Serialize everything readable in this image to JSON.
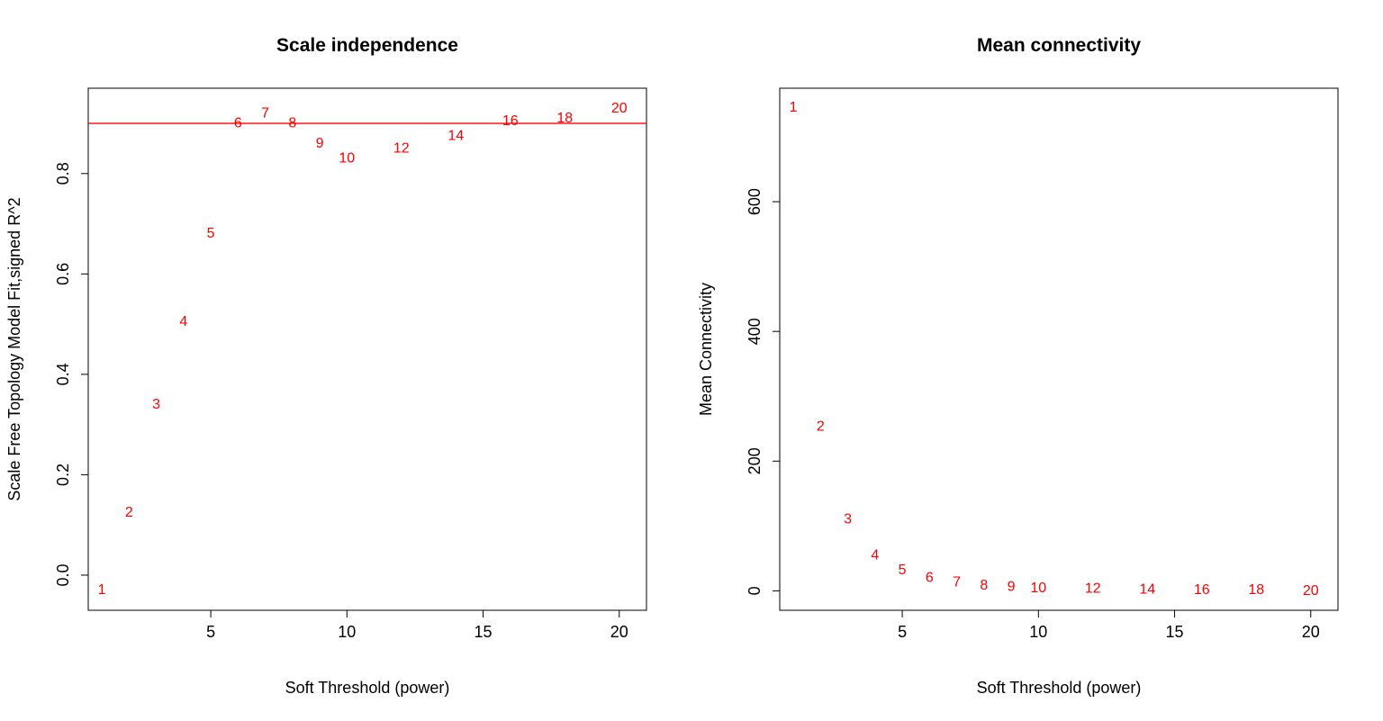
{
  "chart_data": [
    {
      "type": "scatter",
      "title": "Scale independence",
      "xlabel": "Soft Threshold (power)",
      "ylabel": "Scale Free Topology Model Fit,signed R^2",
      "xlim": [
        0.5,
        21
      ],
      "ylim": [
        -0.07,
        0.97
      ],
      "xticks": [
        5,
        10,
        15,
        20
      ],
      "yticks": [
        0.0,
        0.2,
        0.4,
        0.6,
        0.8
      ],
      "ytick_labels": [
        "0.0",
        "0.2",
        "0.4",
        "0.6",
        "0.8"
      ],
      "point_labels": [
        "1",
        "2",
        "3",
        "4",
        "5",
        "6",
        "7",
        "8",
        "9",
        "10",
        "12",
        "14",
        "16",
        "18",
        "20"
      ],
      "x": [
        1,
        2,
        3,
        4,
        5,
        6,
        7,
        8,
        9,
        10,
        12,
        14,
        16,
        18,
        20
      ],
      "y": [
        -0.03,
        0.125,
        0.34,
        0.505,
        0.68,
        0.9,
        0.92,
        0.9,
        0.86,
        0.83,
        0.85,
        0.875,
        0.905,
        0.91,
        0.93
      ],
      "reference_line": 0.9,
      "point_color": "#ff0000",
      "line_color": "#ff0000",
      "grid": false
    },
    {
      "type": "scatter",
      "title": "Mean connectivity",
      "xlabel": "Soft Threshold (power)",
      "ylabel": "Mean Connectivity",
      "xlim": [
        0.5,
        21
      ],
      "ylim": [
        -30,
        775
      ],
      "xticks": [
        5,
        10,
        15,
        20
      ],
      "yticks": [
        0,
        200,
        400,
        600
      ],
      "ytick_labels": [
        "0",
        "200",
        "400",
        "600"
      ],
      "point_labels": [
        "1",
        "2",
        "3",
        "4",
        "5",
        "6",
        "7",
        "8",
        "9",
        "10",
        "12",
        "14",
        "16",
        "18",
        "20"
      ],
      "x": [
        1,
        2,
        3,
        4,
        5,
        6,
        7,
        8,
        9,
        10,
        12,
        14,
        16,
        18,
        20
      ],
      "y": [
        745,
        253,
        110,
        55,
        32,
        20,
        13,
        8,
        6,
        4,
        3,
        2,
        1,
        1,
        0
      ],
      "point_color": "#ff0000",
      "grid": false
    }
  ]
}
